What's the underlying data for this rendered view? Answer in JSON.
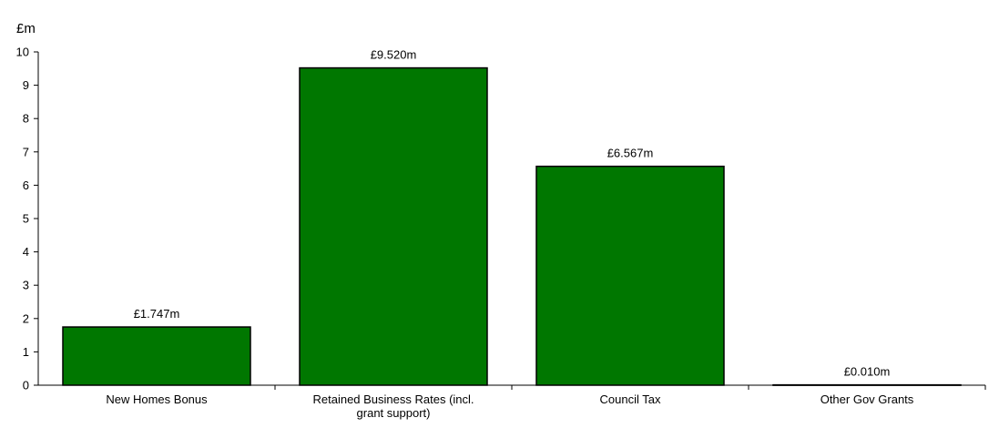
{
  "chart_data": {
    "type": "bar",
    "title": "",
    "ylabel": "£m",
    "xlabel": "",
    "categories": [
      [
        "New Homes Bonus"
      ],
      [
        "Retained Business Rates (incl.",
        "grant support)"
      ],
      [
        "Council Tax"
      ],
      [
        "Other Gov Grants"
      ]
    ],
    "values": [
      1.747,
      9.52,
      6.567,
      0.01
    ],
    "data_labels": [
      "£1.747m",
      "£9.520m",
      "£6.567m",
      "£0.010m"
    ],
    "yticks": [
      "0",
      "1",
      "2",
      "3",
      "4",
      "5",
      "6",
      "7",
      "8",
      "9",
      "10"
    ],
    "ylim": [
      0,
      10
    ],
    "grid": false,
    "legend": "none",
    "colors": {
      "bar": "#007700",
      "bar_border": "#000000",
      "axis": "#000000"
    }
  }
}
